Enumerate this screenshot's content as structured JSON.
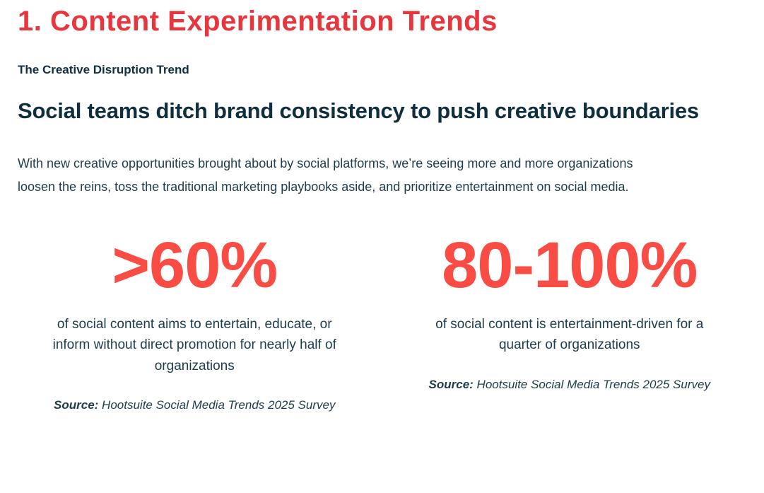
{
  "page": {
    "title": "1. Content Experimentation Trends",
    "eyebrow": "The Creative Disruption Trend",
    "heading": "Social teams ditch brand consistency to push creative boundaries",
    "paragraph": "With new creative opportunities brought about by social platforms, we’re seeing more and more organizations loosen the reins, toss the traditional marketing playbooks aside, and prioritize entertainment on social media."
  },
  "stats": [
    {
      "value": ">60%",
      "description": "of social content aims to entertain, educate, or inform without direct promotion for nearly half of organizations",
      "source_label": "Source:",
      "source_text": "Hootsuite Social Media Trends 2025 Survey"
    },
    {
      "value": "80-100%",
      "description": "of social content is entertainment-driven for a quarter of organizations",
      "source_label": "Source:",
      "source_text": "Hootsuite Social Media Trends 2025 Survey"
    }
  ],
  "colors": {
    "title_red": "#e6373f",
    "stat_red": "#f94c44",
    "heading_navy": "#0f2f3f",
    "body_navy": "#1d3c4b"
  }
}
